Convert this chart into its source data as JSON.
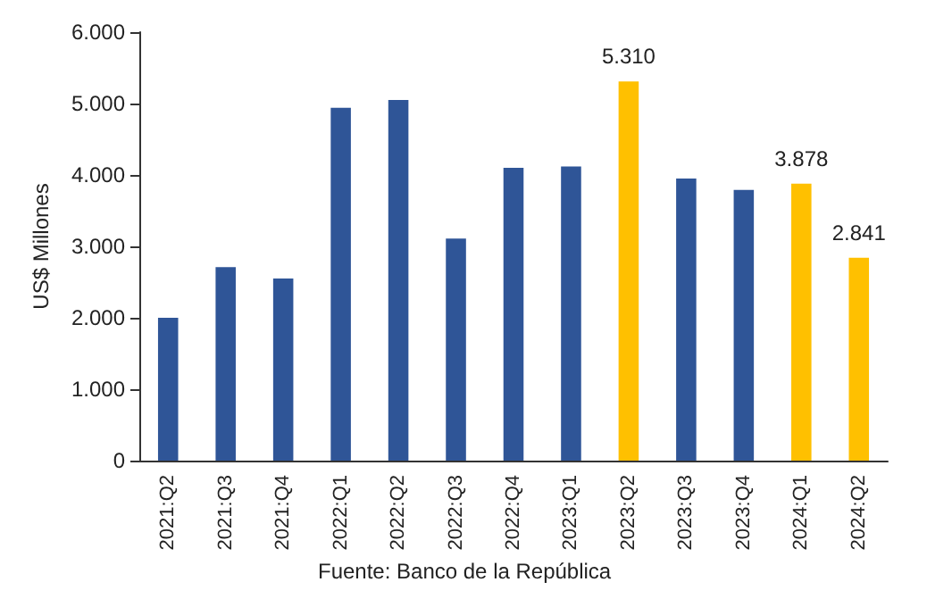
{
  "chart_data": {
    "type": "bar",
    "ylabel": "US$ Millones",
    "categories": [
      "2021:Q2",
      "2021:Q3",
      "2021:Q4",
      "2022:Q1",
      "2022:Q2",
      "2022:Q3",
      "2022:Q4",
      "2023:Q1",
      "2023:Q2",
      "2023:Q3",
      "2023:Q4",
      "2024:Q1",
      "2024:Q2"
    ],
    "values": [
      2000,
      2710,
      2550,
      4940,
      5050,
      3110,
      4100,
      4120,
      5310,
      3950,
      3790,
      3878,
      2841
    ],
    "colors": [
      "#2f5597",
      "#2f5597",
      "#2f5597",
      "#2f5597",
      "#2f5597",
      "#2f5597",
      "#2f5597",
      "#2f5597",
      "#ffc000",
      "#2f5597",
      "#2f5597",
      "#ffc000",
      "#ffc000"
    ],
    "value_labels": [
      null,
      null,
      null,
      null,
      null,
      null,
      null,
      null,
      "5.310",
      null,
      null,
      "3.878",
      "2.841"
    ],
    "ylim": [
      0,
      6000
    ],
    "yticks": [
      {
        "value": 0,
        "label": "0"
      },
      {
        "value": 1000,
        "label": "1.000"
      },
      {
        "value": 2000,
        "label": "2.000"
      },
      {
        "value": 3000,
        "label": "3.000"
      },
      {
        "value": 4000,
        "label": "4.000"
      },
      {
        "value": 5000,
        "label": "5.000"
      },
      {
        "value": 6000,
        "label": "6.000"
      }
    ],
    "grid": false,
    "annotations": [
      "Fuente: Banco de la República"
    ]
  }
}
